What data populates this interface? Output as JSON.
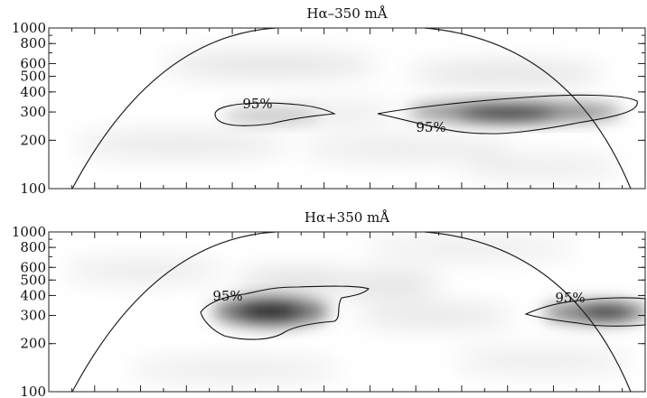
{
  "chart_data": [
    {
      "type": "heatmap",
      "title": "Hα–350 mÅ",
      "yscale": "log",
      "ylim": [
        100,
        1000
      ],
      "yticks": [
        100,
        200,
        300,
        400,
        500,
        600,
        800,
        1000
      ],
      "ytick_labels": [
        "100",
        "200",
        "300",
        "400",
        "500",
        "600",
        "800",
        "1000"
      ],
      "contour_label": "95%",
      "significance_regions": [
        {
          "label": "95%",
          "period_range": [
            230,
            300
          ]
        },
        {
          "label": "95%",
          "period_range": [
            220,
            380
          ]
        }
      ],
      "power_peaks": [
        {
          "period": 290,
          "strength": 1.0
        }
      ]
    },
    {
      "type": "heatmap",
      "title": "Hα+350 mÅ",
      "yscale": "log",
      "ylim": [
        100,
        1000
      ],
      "yticks": [
        100,
        200,
        300,
        400,
        500,
        600,
        800,
        1000
      ],
      "ytick_labels": [
        "100",
        "200",
        "300",
        "400",
        "500",
        "600",
        "800",
        "1000"
      ],
      "contour_label": "95%",
      "significance_regions": [
        {
          "label": "95%",
          "period_range": [
            210,
            450
          ]
        },
        {
          "label": "95%",
          "period_range": [
            290,
            380
          ]
        }
      ],
      "power_peaks": [
        {
          "period": 320,
          "strength": 1.0
        },
        {
          "period": 320,
          "strength": 0.85
        }
      ]
    }
  ]
}
